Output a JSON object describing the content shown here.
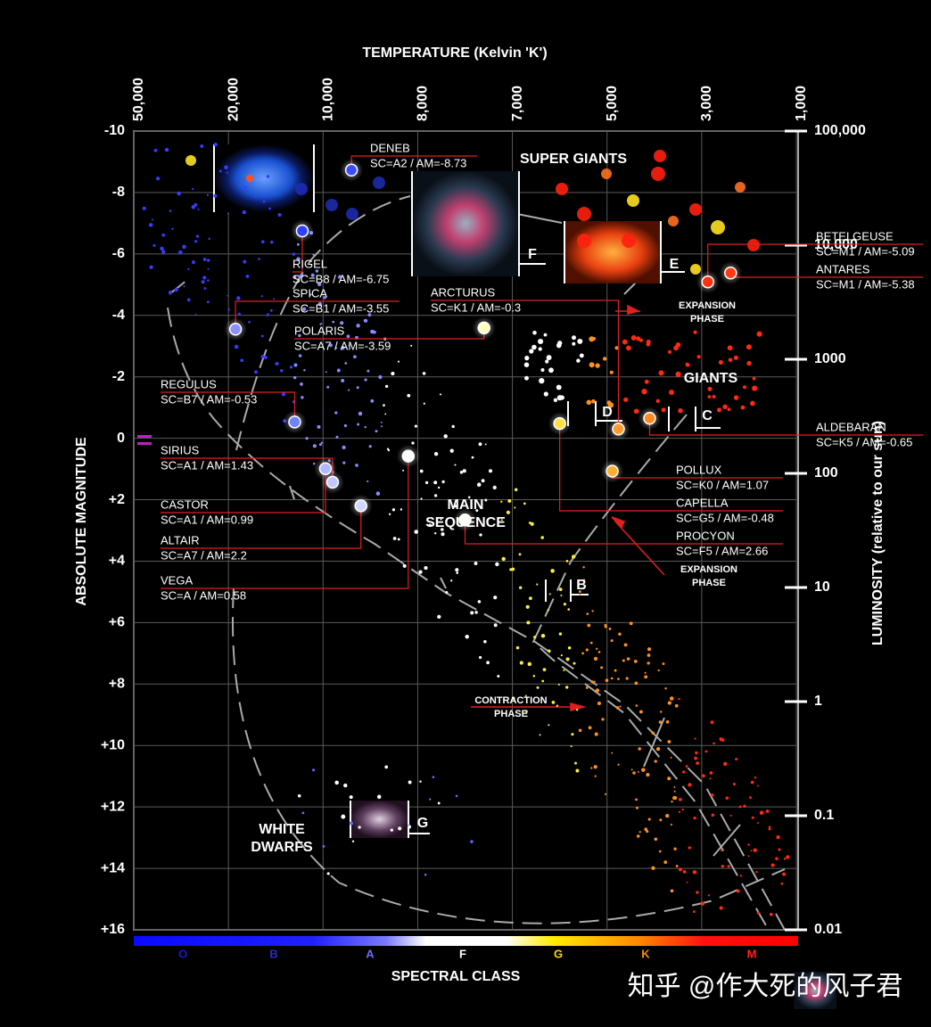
{
  "chart_data": {
    "type": "scatter",
    "x_label": "TEMPERATURE (Kelvin 'K')",
    "y_label": "ABSOLUTE MAGNITUDE",
    "y2_label": "LUMINOSITY (relative to our sun)",
    "spectral_label": "SPECTRAL CLASS",
    "xlim": [
      50000,
      1000
    ],
    "xticks": [
      {
        "value": 50000,
        "label": "50,000"
      },
      {
        "value": 20000,
        "label": "20,000"
      },
      {
        "value": 10000,
        "label": "10,000"
      },
      {
        "value": 8000,
        "label": "8,000"
      },
      {
        "value": 7000,
        "label": "7,000"
      },
      {
        "value": 5000,
        "label": "5,000"
      },
      {
        "value": 3000,
        "label": "3,000"
      },
      {
        "value": 1000,
        "label": "1,000"
      }
    ],
    "ylim": [
      -10,
      16
    ],
    "y_inverted": true,
    "yticks": [
      -10,
      -8,
      -6,
      -4,
      -2,
      0,
      {
        "value": 2,
        "label": "+2"
      },
      {
        "value": 4,
        "label": "+4"
      },
      {
        "value": 6,
        "label": "+6"
      },
      {
        "value": 8,
        "label": "+8"
      },
      {
        "value": 10,
        "label": "+10"
      },
      {
        "value": 12,
        "label": "+12"
      },
      {
        "value": 14,
        "label": "+14"
      },
      {
        "value": 16,
        "label": "+16"
      }
    ],
    "y2lim": [
      0.01,
      100000
    ],
    "y2scale": "log",
    "y2ticks": [
      {
        "value": 100000,
        "label": "100,000"
      },
      {
        "value": 10000,
        "label": "10,000"
      },
      1000,
      100,
      10,
      1,
      0.1,
      0.01
    ],
    "grid": true,
    "point_labels": [
      "DENEB",
      "RIGEL",
      "SPICA",
      "POLARIS",
      "REGULUS",
      "SIRIUS",
      "CASTOR",
      "ALTAIR",
      "VEGA",
      "ARCTURUS",
      "BETELGEUSE",
      "ANTARES",
      "ALDEBARAN",
      "POLLUX",
      "CAPELLA",
      "PROCYON"
    ],
    "x": [
      9400,
      12200,
      19250,
      7300,
      13000,
      9800,
      9950,
      9200,
      8200,
      4760,
      2870,
      2390,
      4100,
      4890,
      6000,
      7500
    ],
    "values": [
      -8.73,
      -6.75,
      -3.55,
      -3.59,
      -0.53,
      1.43,
      0.99,
      2.2,
      0.58,
      -0.3,
      -5.09,
      -5.38,
      -0.65,
      1.07,
      -0.48,
      2.66
    ],
    "value_labels": [
      "SC=A2 / AM=-8.73",
      "SC=B8 / AM=-6.75",
      "SC=B1 / AM=-3.55",
      "SC=A7 / AM=-3.59",
      "SC=B7 / AM=-0.53",
      "SC=A1 / AM=1.43",
      "SC=A1 / AM=0.99",
      "SC=A7 / AM=2.2",
      "SC=A / AM=0.58",
      "SC=K1 / AM=-0.3",
      "SC=M1 / AM=-5.09",
      "SC=M1 / AM=-5.38",
      "SC=K5 / AM=-0.65",
      "SC=K0 / AM=1.07",
      "SC=G5 / AM=-0.48",
      "SC=F5 / AM=2.66"
    ],
    "colors": [
      "#3c4cff",
      "#3040ff",
      "#8a90ff",
      "#ffffc0",
      "#7080ff",
      "#c0c8ff",
      "#b0b8ff",
      "#d0d8ff",
      "#ffffff",
      "#ff9a30",
      "#ff3010",
      "#ff3a10",
      "#ff8a20",
      "#ffb030",
      "#ffe040",
      "#fffff0"
    ],
    "spectral_classes": [
      "O",
      "B",
      "A",
      "F",
      "G",
      "K",
      "M"
    ],
    "spectral_colors": [
      "#1a1acc",
      "#2a2acc",
      "#6a6aff",
      "#ffffff",
      "#ffd700",
      "#ff8c00",
      "#ff2020"
    ],
    "annotations": [
      [
        "SUPER GIANTS"
      ],
      [
        "GIANTS"
      ],
      [
        "MAIN",
        "SEQUENCE"
      ],
      [
        "WHITE",
        "DWARFS"
      ],
      [
        "EXPANSION",
        "PHASE"
      ],
      [
        "EXPANSION",
        "PHASE"
      ],
      [
        "CONTRACTION",
        "PHASE"
      ]
    ],
    "phase_markers": [
      "B",
      "C",
      "D",
      "E",
      "F",
      "G"
    ],
    "watermark": "知乎 @作大死的风子君"
  }
}
